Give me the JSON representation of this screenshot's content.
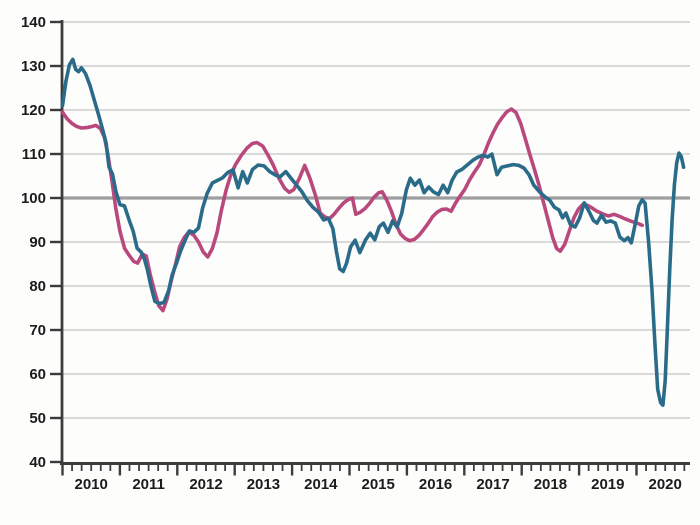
{
  "chart_data": {
    "type": "line",
    "title": "",
    "xlabel": "",
    "ylabel": "",
    "xlim": [
      2010,
      2020.93
    ],
    "ylim": [
      40,
      140
    ],
    "y_ticks": [
      140,
      130,
      120,
      110,
      100,
      90,
      80,
      70,
      60,
      50,
      40
    ],
    "x_ticks": [
      2010,
      2011,
      2012,
      2013,
      2014,
      2015,
      2016,
      2017,
      2018,
      2019,
      2020
    ],
    "x_minor_tick_step_years": 0.1667,
    "reference_line_y": 100,
    "grid": "horizontal",
    "legend": "none",
    "colors": {
      "teal_series": "#2B6B8A",
      "magenta_series": "#B9497C",
      "gridline": "#CFCFCF",
      "reference_line": "#9E9E9E",
      "axis": "#3C3C3C",
      "tick_text": "#1C1C1C",
      "background": "#FDFDFC"
    },
    "series": [
      {
        "name": "magenta",
        "color": "#B9497C",
        "points": [
          [
            2010.0,
            119.5
          ],
          [
            2010.08,
            118.0
          ],
          [
            2010.16,
            117.0
          ],
          [
            2010.24,
            116.3
          ],
          [
            2010.33,
            115.9
          ],
          [
            2010.42,
            116.0
          ],
          [
            2010.5,
            116.2
          ],
          [
            2010.58,
            116.5
          ],
          [
            2010.66,
            115.8
          ],
          [
            2010.73,
            113.8
          ],
          [
            2010.79,
            110.0
          ],
          [
            2010.86,
            104.0
          ],
          [
            2010.93,
            97.5
          ],
          [
            2011.0,
            92.5
          ],
          [
            2011.08,
            88.6
          ],
          [
            2011.16,
            87.0
          ],
          [
            2011.24,
            85.6
          ],
          [
            2011.31,
            85.2
          ],
          [
            2011.39,
            87.3
          ],
          [
            2011.46,
            86.8
          ],
          [
            2011.53,
            82.5
          ],
          [
            2011.61,
            78.5
          ],
          [
            2011.68,
            75.5
          ],
          [
            2011.75,
            74.4
          ],
          [
            2011.82,
            77.0
          ],
          [
            2011.89,
            81.0
          ],
          [
            2011.97,
            85.0
          ],
          [
            2012.04,
            88.9
          ],
          [
            2012.12,
            91.0
          ],
          [
            2012.2,
            92.3
          ],
          [
            2012.29,
            91.5
          ],
          [
            2012.37,
            90.0
          ],
          [
            2012.45,
            87.8
          ],
          [
            2012.53,
            86.6
          ],
          [
            2012.61,
            88.5
          ],
          [
            2012.69,
            92.0
          ],
          [
            2012.77,
            97.3
          ],
          [
            2012.85,
            101.8
          ],
          [
            2012.93,
            105.2
          ],
          [
            2013.01,
            107.5
          ],
          [
            2013.11,
            109.6
          ],
          [
            2013.21,
            111.3
          ],
          [
            2013.31,
            112.4
          ],
          [
            2013.39,
            112.6
          ],
          [
            2013.49,
            111.8
          ],
          [
            2013.59,
            109.5
          ],
          [
            2013.67,
            107.5
          ],
          [
            2013.77,
            104.5
          ],
          [
            2013.87,
            102.2
          ],
          [
            2013.95,
            101.3
          ],
          [
            2014.03,
            101.9
          ],
          [
            2014.13,
            104.6
          ],
          [
            2014.22,
            107.4
          ],
          [
            2014.31,
            104.5
          ],
          [
            2014.41,
            100.5
          ],
          [
            2014.49,
            96.6
          ],
          [
            2014.57,
            95.7
          ],
          [
            2014.65,
            95.3
          ],
          [
            2014.73,
            96.3
          ],
          [
            2014.81,
            97.6
          ],
          [
            2014.89,
            98.8
          ],
          [
            2014.97,
            99.6
          ],
          [
            2015.05,
            100.0
          ],
          [
            2015.11,
            96.3
          ],
          [
            2015.19,
            96.8
          ],
          [
            2015.27,
            97.6
          ],
          [
            2015.35,
            98.8
          ],
          [
            2015.43,
            100.2
          ],
          [
            2015.51,
            101.2
          ],
          [
            2015.57,
            101.4
          ],
          [
            2015.65,
            99.5
          ],
          [
            2015.73,
            97.0
          ],
          [
            2015.81,
            94.0
          ],
          [
            2015.89,
            91.8
          ],
          [
            2015.97,
            90.8
          ],
          [
            2016.05,
            90.3
          ],
          [
            2016.13,
            90.6
          ],
          [
            2016.21,
            91.5
          ],
          [
            2016.29,
            92.8
          ],
          [
            2016.37,
            94.2
          ],
          [
            2016.45,
            95.8
          ],
          [
            2016.53,
            96.8
          ],
          [
            2016.61,
            97.4
          ],
          [
            2016.69,
            97.5
          ],
          [
            2016.77,
            97.0
          ],
          [
            2016.85,
            98.9
          ],
          [
            2016.93,
            100.5
          ],
          [
            2017.01,
            102.0
          ],
          [
            2017.09,
            104.1
          ],
          [
            2017.17,
            105.8
          ],
          [
            2017.26,
            107.5
          ],
          [
            2017.34,
            109.8
          ],
          [
            2017.42,
            112.5
          ],
          [
            2017.5,
            114.8
          ],
          [
            2017.58,
            116.8
          ],
          [
            2017.66,
            118.3
          ],
          [
            2017.74,
            119.6
          ],
          [
            2017.82,
            120.2
          ],
          [
            2017.9,
            119.4
          ],
          [
            2017.98,
            117.0
          ],
          [
            2018.06,
            113.6
          ],
          [
            2018.14,
            110.0
          ],
          [
            2018.22,
            106.6
          ],
          [
            2018.3,
            103.0
          ],
          [
            2018.38,
            99.0
          ],
          [
            2018.46,
            95.0
          ],
          [
            2018.54,
            91.0
          ],
          [
            2018.61,
            88.5
          ],
          [
            2018.67,
            87.9
          ],
          [
            2018.75,
            89.5
          ],
          [
            2018.83,
            92.5
          ],
          [
            2018.91,
            95.5
          ],
          [
            2018.99,
            97.5
          ],
          [
            2019.07,
            98.6
          ],
          [
            2019.15,
            98.3
          ],
          [
            2019.23,
            97.7
          ],
          [
            2019.31,
            97.0
          ],
          [
            2019.41,
            96.4
          ],
          [
            2019.51,
            95.9
          ],
          [
            2019.61,
            96.3
          ],
          [
            2019.71,
            95.8
          ],
          [
            2019.81,
            95.2
          ],
          [
            2019.91,
            94.7
          ],
          [
            2020.01,
            94.3
          ],
          [
            2020.1,
            93.8
          ]
        ]
      },
      {
        "name": "teal",
        "color": "#2B6B8A",
        "points": [
          [
            2010.0,
            121.0
          ],
          [
            2010.06,
            126.5
          ],
          [
            2010.12,
            130.3
          ],
          [
            2010.18,
            131.5
          ],
          [
            2010.23,
            129.2
          ],
          [
            2010.28,
            128.7
          ],
          [
            2010.33,
            129.6
          ],
          [
            2010.4,
            128.3
          ],
          [
            2010.48,
            125.5
          ],
          [
            2010.56,
            122.0
          ],
          [
            2010.63,
            118.8
          ],
          [
            2010.7,
            115.5
          ],
          [
            2010.76,
            112.5
          ],
          [
            2010.81,
            107.0
          ],
          [
            2010.87,
            105.5
          ],
          [
            2010.93,
            101.5
          ],
          [
            2011.0,
            98.5
          ],
          [
            2011.08,
            98.2
          ],
          [
            2011.16,
            95.0
          ],
          [
            2011.23,
            92.5
          ],
          [
            2011.3,
            88.6
          ],
          [
            2011.37,
            87.7
          ],
          [
            2011.43,
            86.0
          ],
          [
            2011.48,
            83.6
          ],
          [
            2011.54,
            80.0
          ],
          [
            2011.61,
            76.5
          ],
          [
            2011.69,
            76.0
          ],
          [
            2011.77,
            76.3
          ],
          [
            2011.85,
            79.0
          ],
          [
            2011.91,
            82.5
          ],
          [
            2011.98,
            85.0
          ],
          [
            2012.06,
            88.0
          ],
          [
            2012.14,
            90.5
          ],
          [
            2012.21,
            92.5
          ],
          [
            2012.29,
            92.2
          ],
          [
            2012.37,
            93.2
          ],
          [
            2012.44,
            97.7
          ],
          [
            2012.52,
            101.0
          ],
          [
            2012.61,
            103.4
          ],
          [
            2012.7,
            104.0
          ],
          [
            2012.79,
            104.6
          ],
          [
            2012.88,
            105.8
          ],
          [
            2012.97,
            106.4
          ],
          [
            2013.06,
            102.3
          ],
          [
            2013.14,
            106.0
          ],
          [
            2013.22,
            103.4
          ],
          [
            2013.31,
            106.5
          ],
          [
            2013.41,
            107.5
          ],
          [
            2013.51,
            107.3
          ],
          [
            2013.61,
            106.0
          ],
          [
            2013.71,
            105.2
          ],
          [
            2013.79,
            104.8
          ],
          [
            2013.89,
            106.0
          ],
          [
            2013.98,
            104.5
          ],
          [
            2014.08,
            102.9
          ],
          [
            2014.17,
            101.4
          ],
          [
            2014.26,
            99.5
          ],
          [
            2014.36,
            97.9
          ],
          [
            2014.46,
            96.8
          ],
          [
            2014.55,
            95.0
          ],
          [
            2014.63,
            95.4
          ],
          [
            2014.71,
            93.0
          ],
          [
            2014.77,
            88.0
          ],
          [
            2014.83,
            83.9
          ],
          [
            2014.89,
            83.3
          ],
          [
            2014.95,
            85.2
          ],
          [
            2015.02,
            88.9
          ],
          [
            2015.1,
            90.4
          ],
          [
            2015.18,
            87.6
          ],
          [
            2015.28,
            90.5
          ],
          [
            2015.36,
            92.0
          ],
          [
            2015.44,
            90.5
          ],
          [
            2015.52,
            93.5
          ],
          [
            2015.59,
            94.3
          ],
          [
            2015.67,
            92.2
          ],
          [
            2015.75,
            94.8
          ],
          [
            2015.83,
            93.4
          ],
          [
            2015.91,
            96.5
          ],
          [
            2015.99,
            101.8
          ],
          [
            2016.06,
            104.5
          ],
          [
            2016.14,
            102.9
          ],
          [
            2016.22,
            104.1
          ],
          [
            2016.3,
            101.2
          ],
          [
            2016.38,
            102.5
          ],
          [
            2016.46,
            101.4
          ],
          [
            2016.55,
            100.8
          ],
          [
            2016.63,
            102.9
          ],
          [
            2016.71,
            101.2
          ],
          [
            2016.79,
            104.1
          ],
          [
            2016.87,
            105.9
          ],
          [
            2016.96,
            106.5
          ],
          [
            2017.05,
            107.5
          ],
          [
            2017.15,
            108.6
          ],
          [
            2017.24,
            109.3
          ],
          [
            2017.33,
            109.7
          ],
          [
            2017.41,
            109.3
          ],
          [
            2017.48,
            110.0
          ],
          [
            2017.57,
            105.3
          ],
          [
            2017.65,
            107.0
          ],
          [
            2017.75,
            107.3
          ],
          [
            2017.85,
            107.6
          ],
          [
            2017.95,
            107.4
          ],
          [
            2018.04,
            106.8
          ],
          [
            2018.13,
            105.2
          ],
          [
            2018.21,
            102.9
          ],
          [
            2018.31,
            101.4
          ],
          [
            2018.41,
            100.2
          ],
          [
            2018.49,
            99.5
          ],
          [
            2018.57,
            97.9
          ],
          [
            2018.65,
            97.3
          ],
          [
            2018.71,
            95.5
          ],
          [
            2018.77,
            96.6
          ],
          [
            2018.85,
            93.9
          ],
          [
            2018.93,
            93.4
          ],
          [
            2019.01,
            95.5
          ],
          [
            2019.09,
            98.9
          ],
          [
            2019.17,
            97.0
          ],
          [
            2019.25,
            94.9
          ],
          [
            2019.31,
            94.3
          ],
          [
            2019.39,
            96.1
          ],
          [
            2019.47,
            94.5
          ],
          [
            2019.55,
            94.8
          ],
          [
            2019.63,
            94.3
          ],
          [
            2019.71,
            91.1
          ],
          [
            2019.79,
            90.3
          ],
          [
            2019.85,
            91.0
          ],
          [
            2019.91,
            89.8
          ],
          [
            2019.98,
            94.3
          ],
          [
            2020.04,
            98.2
          ],
          [
            2020.1,
            99.6
          ],
          [
            2020.15,
            98.8
          ],
          [
            2020.21,
            90.0
          ],
          [
            2020.27,
            79.0
          ],
          [
            2020.32,
            67.0
          ],
          [
            2020.37,
            56.5
          ],
          [
            2020.42,
            53.5
          ],
          [
            2020.46,
            52.9
          ],
          [
            2020.5,
            58.5
          ],
          [
            2020.54,
            71.0
          ],
          [
            2020.58,
            84.0
          ],
          [
            2020.62,
            95.0
          ],
          [
            2020.66,
            103.0
          ],
          [
            2020.7,
            108.0
          ],
          [
            2020.74,
            110.2
          ],
          [
            2020.78,
            109.4
          ],
          [
            2020.82,
            107.0
          ]
        ]
      }
    ]
  }
}
